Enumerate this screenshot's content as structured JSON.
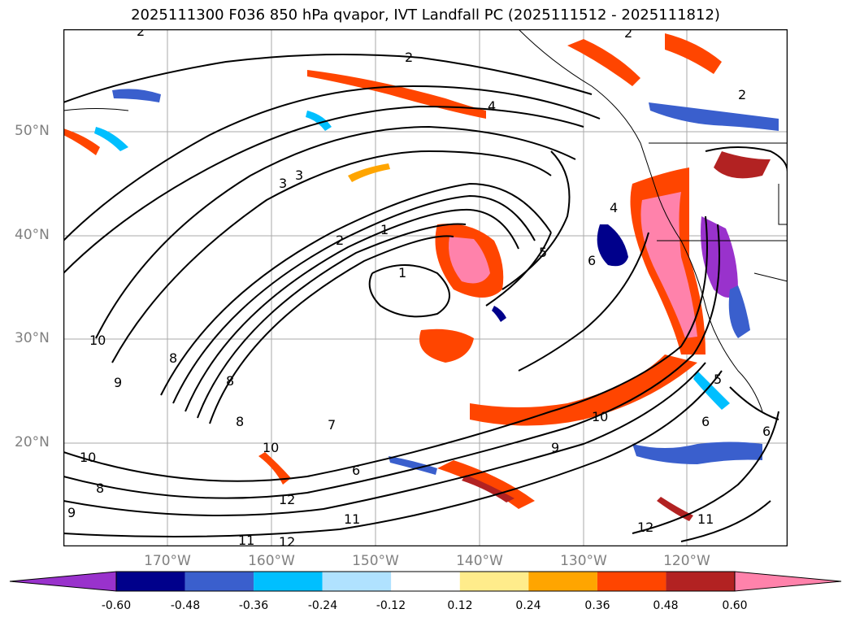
{
  "title": "2025111300 F036 850 hPa qvapor, IVT Landfall PC (2025111512 - 2025111812)",
  "lat_labels": [
    "50°N",
    "40°N",
    "30°N",
    "20°N"
  ],
  "lon_labels": [
    "170°W",
    "160°W",
    "150°W",
    "140°W",
    "130°W",
    "120°W"
  ],
  "contour_labels": [
    "2",
    "2",
    "2",
    "2",
    "4",
    "3",
    "3",
    "2",
    "1",
    "1",
    "5",
    "6",
    "4",
    "10",
    "9",
    "8",
    "10",
    "10",
    "8",
    "7",
    "6",
    "12",
    "11",
    "12",
    "11",
    "12",
    "9",
    "10",
    "11",
    "6",
    "6",
    "5",
    "8",
    "8",
    "9"
  ],
  "colorbar": {
    "tick_labels": [
      "-0.60",
      "-0.48",
      "-0.36",
      "-0.24",
      "-0.12",
      "0.12",
      "0.24",
      "0.36",
      "0.48",
      "0.60"
    ],
    "colors": [
      "#9932cc",
      "#00008b",
      "#3a5fcd",
      "#00bfff",
      "#b0e2ff",
      "#ffffff",
      "#ffec8b",
      "#ffa500",
      "#ff4500",
      "#b22222",
      "#ff82ab"
    ]
  }
}
